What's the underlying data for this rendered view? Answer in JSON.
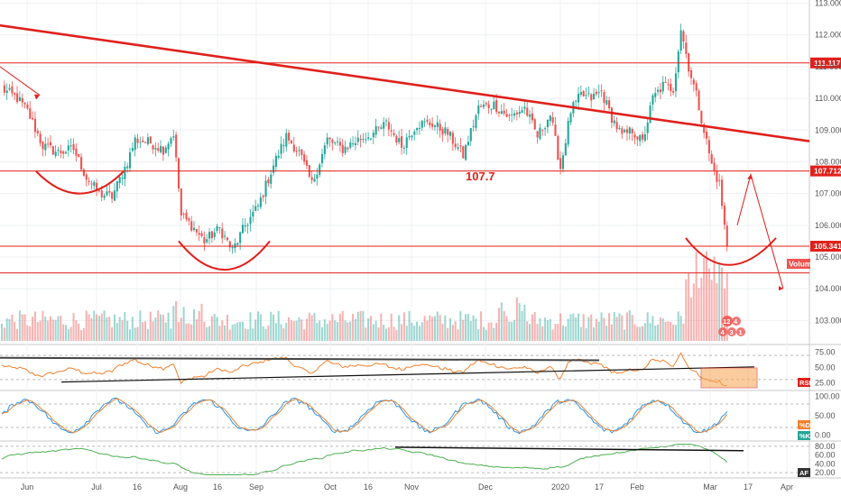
{
  "chart_data": [
    {
      "type": "candlestick",
      "x_ticks": [
        "Jun",
        "Jul",
        "16",
        "Aug",
        "16",
        "Sep",
        "Oct",
        "16",
        "Nov",
        "Dec",
        "2020",
        "17",
        "Feb",
        "Mar",
        "17",
        "Apr"
      ],
      "y_ticks": [
        "103.000",
        "104.000",
        "105.000",
        "106.000",
        "107.000",
        "108.000",
        "109.000",
        "110.000",
        "111.000",
        "112.000",
        "113.000"
      ],
      "ylim": [
        102.3,
        113.1
      ],
      "price_path": [
        [
          0,
          110.3
        ],
        [
          6,
          110.0
        ],
        [
          10,
          109.6
        ],
        [
          16,
          108.5
        ],
        [
          22,
          108.3
        ],
        [
          28,
          108.4
        ],
        [
          33,
          107.5
        ],
        [
          38,
          107.0
        ],
        [
          43,
          106.9
        ],
        [
          49,
          108.0
        ],
        [
          52,
          108.7
        ],
        [
          58,
          108.6
        ],
        [
          63,
          108.4
        ],
        [
          67,
          108.9
        ],
        [
          70,
          106.3
        ],
        [
          74,
          106.0
        ],
        [
          79,
          105.5
        ],
        [
          85,
          105.9
        ],
        [
          90,
          105.2
        ],
        [
          95,
          106.0
        ],
        [
          100,
          106.6
        ],
        [
          106,
          107.9
        ],
        [
          111,
          108.8
        ],
        [
          116,
          108.3
        ],
        [
          121,
          107.3
        ],
        [
          127,
          108.7
        ],
        [
          133,
          108.4
        ],
        [
          139,
          108.7
        ],
        [
          145,
          108.9
        ],
        [
          150,
          109.2
        ],
        [
          156,
          108.5
        ],
        [
          162,
          109.2
        ],
        [
          168,
          109.2
        ],
        [
          174,
          108.9
        ],
        [
          180,
          108.2
        ],
        [
          186,
          109.7
        ],
        [
          192,
          109.8
        ],
        [
          198,
          109.4
        ],
        [
          204,
          109.7
        ],
        [
          209,
          108.8
        ],
        [
          214,
          109.5
        ],
        [
          218,
          107.8
        ],
        [
          222,
          109.6
        ],
        [
          226,
          110.1
        ],
        [
          230,
          110.0
        ],
        [
          234,
          110.2
        ],
        [
          238,
          109.4
        ],
        [
          242,
          108.8
        ],
        [
          246,
          109.0
        ],
        [
          250,
          108.6
        ],
        [
          254,
          110.0
        ],
        [
          258,
          110.4
        ],
        [
          262,
          110.3
        ],
        [
          265,
          112.2
        ],
        [
          268,
          111.0
        ],
        [
          271,
          110.1
        ],
        [
          274,
          109.0
        ],
        [
          277,
          107.9
        ],
        [
          280,
          107.3
        ],
        [
          283,
          105.3
        ]
      ],
      "volume_level": [
        0.15,
        0.35
      ],
      "resistance_levels": [
        {
          "label": "111.117",
          "value": 111.117
        },
        {
          "label": "107.712",
          "value": 107.712
        },
        {
          "label": "105.341",
          "value": 105.341
        }
      ],
      "support_level": 104.5,
      "annotation": "107.7",
      "volume_label": "Volume",
      "badge_values": [
        "12",
        "4",
        "1",
        "3",
        "4"
      ]
    },
    {
      "type": "line",
      "ylabel": "RSI",
      "y_ticks": [
        "25.00",
        "50.00",
        "75.00"
      ],
      "ylim": [
        15,
        85
      ]
    },
    {
      "type": "line",
      "ylabel": "%K",
      "extra_label": "%D",
      "y_ticks": [
        "0.00",
        "50.00",
        "100.00"
      ],
      "ylim": [
        -10,
        110
      ]
    },
    {
      "type": "line",
      "ylabel": "AF",
      "y_ticks": [
        "20.00",
        "40.00",
        "60.00",
        "80.00"
      ],
      "ylim": [
        12,
        88
      ]
    }
  ]
}
